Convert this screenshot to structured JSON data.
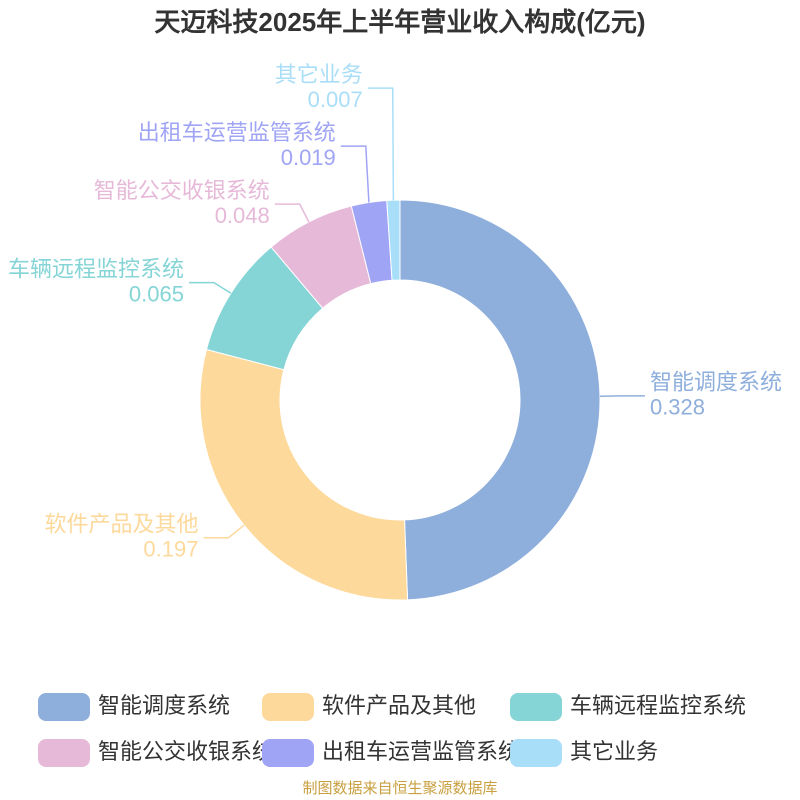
{
  "chart_data": {
    "type": "donut",
    "title": "天迈科技2025年上半年营业收入构成(亿元)",
    "categories": [
      "智能调度系统",
      "软件产品及其他",
      "车辆远程监控系统",
      "智能公交收银系统",
      "出租车运营监管系统",
      "其它业务"
    ],
    "values": [
      0.328,
      0.197,
      0.065,
      0.048,
      0.019,
      0.007
    ],
    "colors": [
      "#8eaedb",
      "#fdd99b",
      "#85d4d6",
      "#e6b9d8",
      "#a0a4f5",
      "#a9def8"
    ],
    "source": "制图数据来自恒生聚源数据库"
  }
}
